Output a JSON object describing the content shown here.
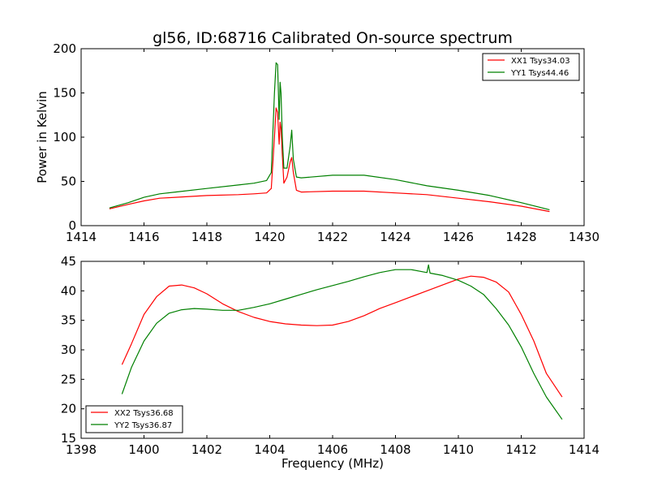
{
  "chart_data": [
    {
      "type": "line",
      "title": "gl56, ID:68716 Calibrated On-source spectrum",
      "xlabel": "",
      "ylabel": "Power in Kelvin",
      "xlim": [
        1414,
        1430
      ],
      "ylim": [
        0,
        200
      ],
      "xticks": [
        "1414",
        "1416",
        "1418",
        "1420",
        "1422",
        "1424",
        "1426",
        "1428",
        "1430"
      ],
      "yticks": [
        "0",
        "50",
        "100",
        "150",
        "200"
      ],
      "grid": false,
      "legend_position": "top-right",
      "series": [
        {
          "name": "XX1 Tsys34.03",
          "color": "#ff0000",
          "x": [
            1414.9,
            1415.5,
            1416,
            1416.5,
            1417,
            1418,
            1419,
            1419.5,
            1419.9,
            1420.05,
            1420.15,
            1420.2,
            1420.25,
            1420.3,
            1420.33,
            1420.36,
            1420.4,
            1420.45,
            1420.55,
            1420.65,
            1420.7,
            1420.75,
            1420.85,
            1421,
            1422,
            1423,
            1424,
            1425,
            1426,
            1427,
            1428,
            1428.9
          ],
          "y": [
            19,
            24,
            28,
            31,
            32,
            34,
            35,
            36,
            37,
            42,
            100,
            133,
            128,
            92,
            117,
            110,
            80,
            48,
            55,
            72,
            77,
            60,
            40,
            38,
            39,
            39,
            37,
            35,
            31,
            27,
            22,
            16
          ]
        },
        {
          "name": "YY1 Tsys44.46",
          "color": "#008000",
          "x": [
            1414.9,
            1415.5,
            1416,
            1416.5,
            1417,
            1418,
            1419,
            1419.5,
            1419.9,
            1420.05,
            1420.15,
            1420.2,
            1420.25,
            1420.3,
            1420.33,
            1420.36,
            1420.4,
            1420.45,
            1420.55,
            1420.65,
            1420.7,
            1420.75,
            1420.85,
            1421,
            1422,
            1423,
            1424,
            1425,
            1426,
            1427,
            1428,
            1428.9
          ],
          "y": [
            20,
            26,
            32,
            36,
            38,
            42,
            46,
            48,
            51,
            60,
            150,
            184,
            182,
            120,
            162,
            150,
            100,
            65,
            65,
            90,
            108,
            75,
            55,
            54,
            57,
            57,
            52,
            45,
            40,
            34,
            26,
            18
          ]
        }
      ]
    },
    {
      "type": "line",
      "title": "",
      "xlabel": "Frequency (MHz)",
      "ylabel": "",
      "xlim": [
        1398,
        1414
      ],
      "ylim": [
        15,
        45
      ],
      "xticks": [
        "1398",
        "1400",
        "1402",
        "1404",
        "1406",
        "1408",
        "1410",
        "1412",
        "1414"
      ],
      "yticks": [
        "15",
        "20",
        "25",
        "30",
        "35",
        "40",
        "45"
      ],
      "grid": false,
      "legend_position": "bottom-left",
      "series": [
        {
          "name": "XX2 Tsys36.68",
          "color": "#ff0000",
          "x": [
            1399.3,
            1399.6,
            1400,
            1400.4,
            1400.8,
            1401.2,
            1401.6,
            1402,
            1402.5,
            1403,
            1403.5,
            1404,
            1404.5,
            1405,
            1405.5,
            1406,
            1406.5,
            1407,
            1407.5,
            1408,
            1408.5,
            1409,
            1409.5,
            1410,
            1410.4,
            1410.8,
            1411.2,
            1411.6,
            1412,
            1412.4,
            1412.8,
            1413.3
          ],
          "y": [
            27.5,
            31,
            36,
            39,
            40.8,
            41,
            40.5,
            39.5,
            37.8,
            36.5,
            35.5,
            34.8,
            34.4,
            34.2,
            34.1,
            34.2,
            34.8,
            35.8,
            37,
            38,
            39,
            40,
            41,
            42,
            42.5,
            42.3,
            41.5,
            39.8,
            36,
            31.5,
            26,
            22
          ]
        },
        {
          "name": "YY2 Tsys36.87",
          "color": "#008000",
          "x": [
            1399.3,
            1399.6,
            1400,
            1400.4,
            1400.8,
            1401.2,
            1401.6,
            1402,
            1402.5,
            1403,
            1403.5,
            1404,
            1404.5,
            1405,
            1405.5,
            1406,
            1406.5,
            1407,
            1407.5,
            1408,
            1408.5,
            1409,
            1409.05,
            1409.1,
            1409.5,
            1410,
            1410.4,
            1410.8,
            1411.2,
            1411.6,
            1412,
            1412.4,
            1412.8,
            1413.3
          ],
          "y": [
            22.5,
            27,
            31.5,
            34.5,
            36.2,
            36.8,
            37,
            36.9,
            36.7,
            36.7,
            37.2,
            37.8,
            38.6,
            39.4,
            40.2,
            40.9,
            41.6,
            42.4,
            43.1,
            43.6,
            43.6,
            43.1,
            44.4,
            43,
            42.6,
            41.8,
            40.8,
            39.4,
            37,
            34.2,
            30.5,
            26,
            22,
            18.2
          ]
        }
      ]
    }
  ]
}
